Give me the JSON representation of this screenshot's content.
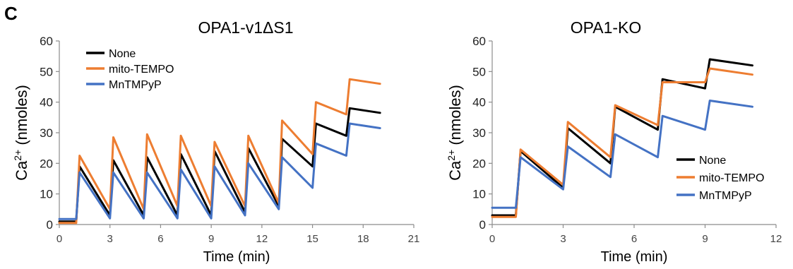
{
  "panel_label": "C",
  "colors": {
    "None": "#000000",
    "mito-TEMPO": "#ED7D31",
    "MnTMPyP": "#4472C4",
    "axis": "#8c8c8c"
  },
  "chart_data": [
    {
      "type": "line",
      "title": "OPA1-v1ΔS1",
      "xlabel": "Time (min)",
      "ylabel": "Ca2+ (nmoles)",
      "ylabel_base": "Ca",
      "ylabel_sup": "2+",
      "ylabel_rest": " (nmoles)",
      "xlim": [
        0,
        21
      ],
      "ylim": [
        0,
        60
      ],
      "xticks": [
        0,
        3,
        6,
        9,
        12,
        15,
        18,
        21
      ],
      "yticks": [
        0,
        10,
        20,
        30,
        40,
        50,
        60
      ],
      "legend_position": "top-left",
      "series": [
        {
          "name": "None",
          "color": "#000000",
          "x": [
            0,
            1.0,
            1.2,
            3.0,
            3.2,
            5.0,
            5.2,
            7.0,
            7.2,
            9.0,
            9.2,
            11.0,
            11.2,
            13.0,
            13.2,
            15.0,
            15.2,
            17.0,
            17.2,
            19.0
          ],
          "y": [
            1,
            1,
            19,
            3,
            21,
            3,
            22,
            3,
            23,
            3,
            24,
            4,
            25,
            6,
            28,
            19,
            33,
            29,
            38,
            36.5
          ]
        },
        {
          "name": "mito-TEMPO",
          "color": "#ED7D31",
          "x": [
            0,
            1.0,
            1.2,
            3.0,
            3.2,
            5.0,
            5.2,
            7.0,
            7.2,
            9.0,
            9.2,
            11.0,
            11.2,
            13.0,
            13.2,
            15.0,
            15.2,
            17.0,
            17.2,
            19.0
          ],
          "y": [
            0.5,
            0.5,
            22.5,
            5,
            28.5,
            5,
            29.5,
            6,
            29,
            6,
            27,
            6,
            29,
            7,
            34,
            23,
            40,
            36,
            47.5,
            46
          ]
        },
        {
          "name": "MnTMPyP",
          "color": "#4472C4",
          "x": [
            0,
            1.0,
            1.2,
            3.0,
            3.2,
            5.0,
            5.2,
            7.0,
            7.2,
            9.0,
            9.2,
            11.0,
            11.2,
            13.0,
            13.2,
            15.0,
            15.2,
            17.0,
            17.2,
            19.0
          ],
          "y": [
            1.8,
            1.8,
            17,
            2,
            17,
            2,
            17,
            2,
            18,
            2,
            19,
            3,
            20,
            5,
            22,
            12,
            26.5,
            22.5,
            33,
            31.5
          ]
        }
      ]
    },
    {
      "type": "line",
      "title": "OPA1-KO",
      "xlabel": "Time (min)",
      "ylabel": "Ca2+ (nmoles)",
      "ylabel_base": "Ca",
      "ylabel_sup": "2+",
      "ylabel_rest": " (nmoles)",
      "xlim": [
        0,
        12
      ],
      "ylim": [
        0,
        60
      ],
      "xticks": [
        0,
        3,
        6,
        9,
        12
      ],
      "yticks": [
        0,
        10,
        20,
        30,
        40,
        50,
        60
      ],
      "legend_position": "bottom-right",
      "series": [
        {
          "name": "None",
          "color": "#000000",
          "x": [
            0,
            1.0,
            1.2,
            3.0,
            3.2,
            5.0,
            5.2,
            7.0,
            7.2,
            9.0,
            9.2,
            11.0
          ],
          "y": [
            3,
            3,
            24,
            12,
            31.5,
            20,
            38.5,
            31,
            47.5,
            44.5,
            54,
            52
          ]
        },
        {
          "name": "mito-TEMPO",
          "color": "#ED7D31",
          "x": [
            0,
            1.0,
            1.2,
            3.0,
            3.2,
            5.0,
            5.2,
            7.0,
            7.2,
            9.0,
            9.2,
            11.0
          ],
          "y": [
            2.5,
            2.5,
            24.5,
            13,
            33.5,
            22,
            39,
            32.5,
            46.5,
            46.5,
            51,
            49
          ]
        },
        {
          "name": "MnTMPyP",
          "color": "#4472C4",
          "x": [
            0,
            1.0,
            1.2,
            3.0,
            3.2,
            5.0,
            5.2,
            7.0,
            7.2,
            9.0,
            9.2,
            11.0
          ],
          "y": [
            5.5,
            5.5,
            22,
            11.5,
            25.5,
            15.5,
            29.5,
            22,
            35.5,
            31,
            40.5,
            38.5
          ]
        }
      ]
    }
  ]
}
